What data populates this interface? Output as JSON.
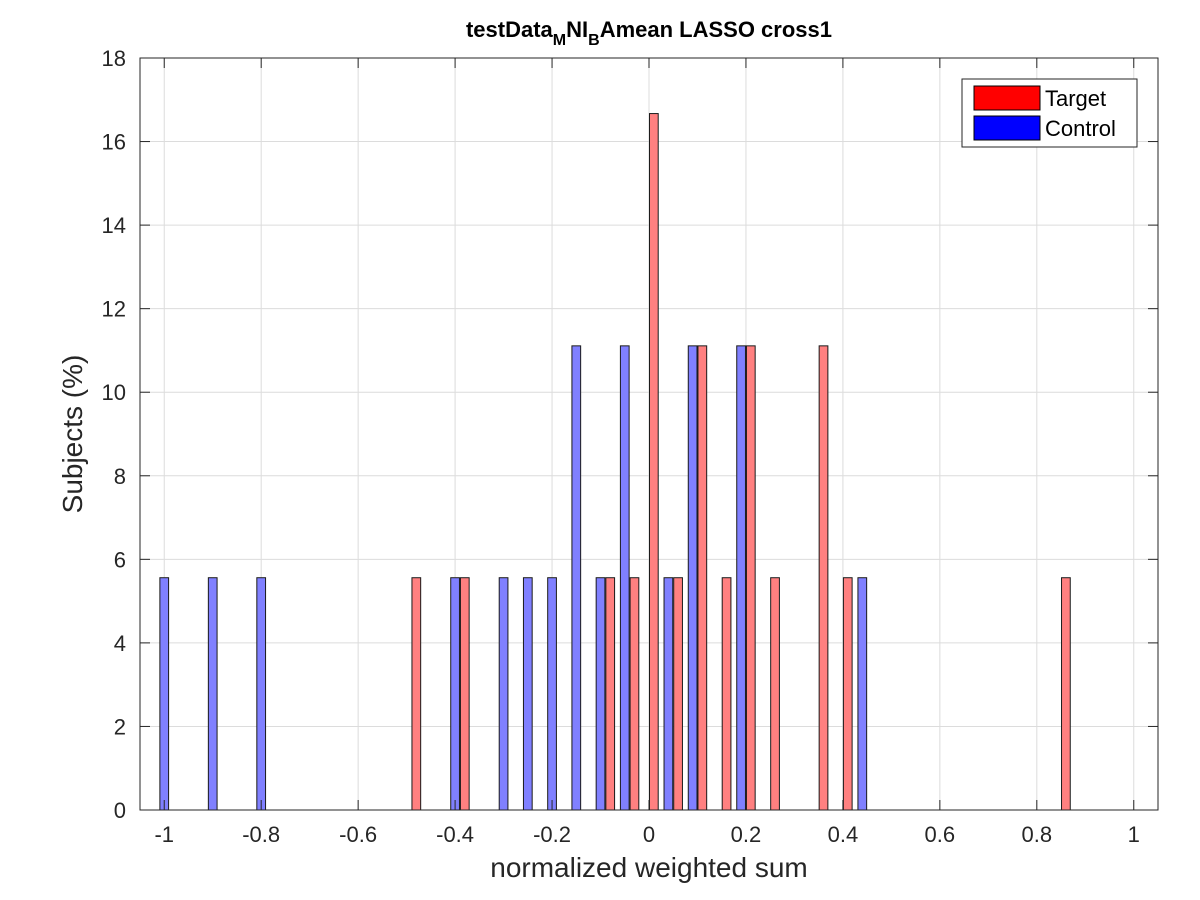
{
  "chart_data": {
    "type": "bar",
    "title": {
      "prefix": "testData",
      "sub1": "M",
      "middle": "NI",
      "sub2": "B",
      "suffix": "Amean LASSO cross1"
    },
    "xlabel": "normalized weighted sum",
    "ylabel": "Subjects (%)",
    "xlim": [
      -1.05,
      1.05
    ],
    "ylim": [
      0,
      18
    ],
    "xticks": [
      -1,
      -0.8,
      -0.6,
      -0.4,
      -0.2,
      0,
      0.2,
      0.4,
      0.6,
      0.8,
      1
    ],
    "xtick_labels": [
      "-1",
      "-0.8",
      "-0.6",
      "-0.4",
      "-0.2",
      "0",
      "0.2",
      "0.4",
      "0.6",
      "0.8",
      "1"
    ],
    "yticks": [
      0,
      2,
      4,
      6,
      8,
      10,
      12,
      14,
      16,
      18
    ],
    "ytick_labels": [
      "0",
      "2",
      "4",
      "6",
      "8",
      "10",
      "12",
      "14",
      "16",
      "18"
    ],
    "grid": true,
    "legend_position": "top-right",
    "bar_width": 0.018,
    "series": [
      {
        "name": "Target",
        "color": "#ff0000",
        "fill_color": "#ff8080",
        "x": [
          -0.48,
          -0.38,
          -0.08,
          -0.03,
          0.01,
          0.06,
          0.11,
          0.16,
          0.21,
          0.26,
          0.36,
          0.41,
          0.86
        ],
        "values": [
          5.56,
          5.56,
          5.56,
          5.56,
          16.67,
          5.56,
          11.11,
          5.56,
          11.11,
          5.56,
          11.11,
          5.56,
          5.56
        ]
      },
      {
        "name": "Control",
        "color": "#0000ff",
        "fill_color": "#8080ff",
        "x": [
          -1.0,
          -0.9,
          -0.8,
          -0.4,
          -0.3,
          -0.25,
          -0.2,
          -0.15,
          -0.1,
          -0.05,
          0.04,
          0.09,
          0.19,
          0.44
        ],
        "values": [
          5.56,
          5.56,
          5.56,
          5.56,
          5.56,
          5.56,
          5.56,
          11.11,
          5.56,
          11.11,
          5.56,
          11.11,
          11.11,
          5.56
        ]
      }
    ]
  }
}
